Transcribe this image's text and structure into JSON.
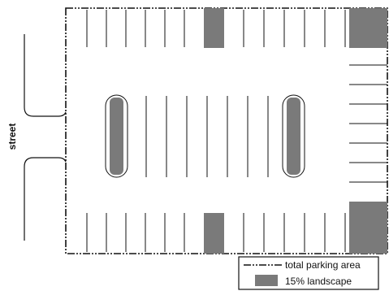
{
  "street_label": "street",
  "legend": {
    "boundary_label": "total parking area",
    "landscape_label": "15% landscape"
  },
  "colors": {
    "landscape": "#7a7a7a",
    "line": "#111111",
    "background": "#ffffff"
  }
}
